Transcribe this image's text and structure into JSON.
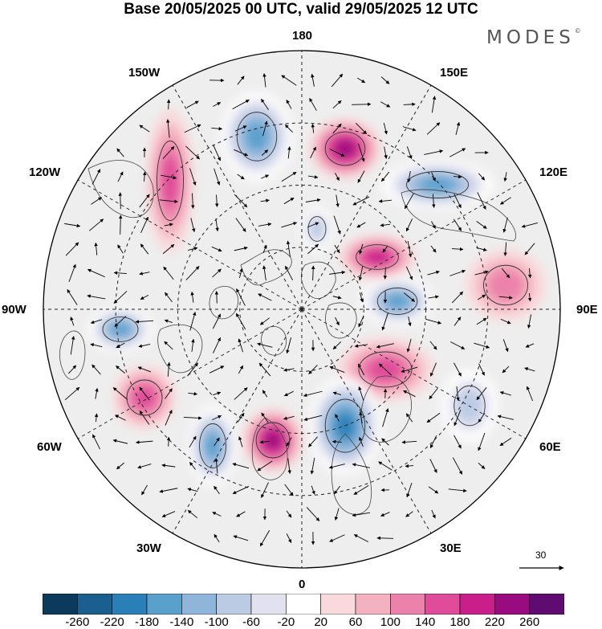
{
  "title": "Base 20/05/2025 00 UTC, valid 29/05/2025 12 UTC",
  "brand": "MODES",
  "brand_mark": "©",
  "longitude_labels": {
    "lon_180": "180",
    "lon_150e": "150E",
    "lon_120e": "120E",
    "lon_90e": "90E",
    "lon_60e": "60E",
    "lon_30e": "30E",
    "lon_0": "0",
    "lon_30w": "30W",
    "lon_60w": "60W",
    "lon_90w": "90W",
    "lon_120w": "120W",
    "lon_150w": "150W"
  },
  "colorbar": {
    "ticks": [
      "-260",
      "-220",
      "-180",
      "-140",
      "-100",
      "-60",
      "-20",
      "20",
      "60",
      "100",
      "140",
      "180",
      "220",
      "260"
    ],
    "colors": [
      "#0c3a5a",
      "#1b5f8e",
      "#2b7fb8",
      "#5aa0cd",
      "#8fb6da",
      "#bccbe4",
      "#e2e1ef",
      "#ffffff",
      "#f9d9dc",
      "#f4b2c0",
      "#ec82ab",
      "#e04c9a",
      "#c91f8a",
      "#9a0a80",
      "#5e0c72"
    ]
  },
  "vector_reference": {
    "value": "30"
  },
  "anomaly_centers": [
    {
      "name": "pink-blob-150e",
      "sign": "positive",
      "level": 220
    },
    {
      "name": "blue-blob-120e",
      "sign": "negative",
      "level": -180
    },
    {
      "name": "blue-blob-165w",
      "sign": "negative",
      "level": -180
    },
    {
      "name": "pink-strip-135w",
      "sign": "positive",
      "level": 140
    },
    {
      "name": "pink-blob-120e-mid",
      "sign": "positive",
      "level": 180
    },
    {
      "name": "blue-blob-90e",
      "sign": "negative",
      "level": -180
    },
    {
      "name": "pink-blob-80e-outer",
      "sign": "positive",
      "level": 100
    },
    {
      "name": "pink-blob-60e-inner",
      "sign": "positive",
      "level": 140
    },
    {
      "name": "blue-blob-30e",
      "sign": "negative",
      "level": -220
    },
    {
      "name": "blue-blob-50e-outer",
      "sign": "negative",
      "level": -100
    },
    {
      "name": "pink-blob-0-inner",
      "sign": "positive",
      "level": 220
    },
    {
      "name": "blue-blob-35w",
      "sign": "negative",
      "level": -180
    },
    {
      "name": "pink-blob-60w",
      "sign": "positive",
      "level": 140
    },
    {
      "name": "blue-blob-90w",
      "sign": "negative",
      "level": -180
    },
    {
      "name": "blue-blob-160w-small",
      "sign": "negative",
      "level": -100
    }
  ]
}
